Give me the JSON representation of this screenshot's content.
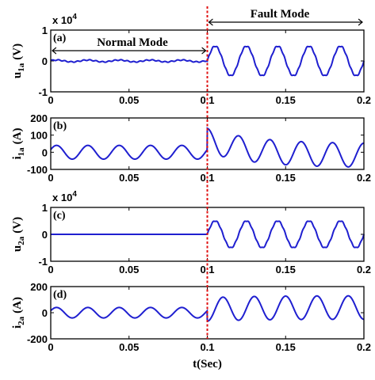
{
  "chart_data": [
    {
      "type": "line",
      "tag": "(a)",
      "ylabel_main": "u",
      "ylabel_sub": "1a",
      "ylabel_unit": "(V)",
      "exponent_base": "x 10",
      "exponent_power": "4",
      "ylim": [
        -1,
        1
      ],
      "yticks": [
        "1",
        "0",
        "-1"
      ],
      "xlim": [
        0,
        0.2
      ],
      "xticks": [
        "0",
        "0.05",
        "0.1",
        "0.15",
        "0.2"
      ],
      "series": [
        {
          "color": "#1f1fd0",
          "pre_amplitude": 0.03,
          "pre_offset": 0,
          "post_amplitude": 0.48,
          "post_offset": 0
        }
      ]
    },
    {
      "type": "line",
      "tag": "(b)",
      "ylabel_main": "i",
      "ylabel_sub": "1a",
      "ylabel_unit": "(A)",
      "ylim": [
        -100,
        200
      ],
      "yticks": [
        "200",
        "100",
        "0",
        "-100"
      ],
      "xlim": [
        0,
        0.2
      ],
      "xticks": [
        "0",
        "0.05",
        "0.1",
        "0.15",
        "0.2"
      ],
      "series": [
        {
          "color": "#1f1fd0",
          "pre_amplitude": 40,
          "pre_offset": 0,
          "post_amplitude": 70,
          "post_offset": 40,
          "jump": 160
        }
      ]
    },
    {
      "type": "line",
      "tag": "(c)",
      "ylabel_main": "u",
      "ylabel_sub": "2a",
      "ylabel_unit": "(V)",
      "exponent_base": "x 10",
      "exponent_power": "4",
      "ylim": [
        -1,
        1
      ],
      "yticks": [
        "1",
        "0",
        "-1"
      ],
      "xlim": [
        0,
        0.2
      ],
      "xticks": [
        "0",
        "0.05",
        "0.1",
        "0.15",
        "0.2"
      ],
      "series": [
        {
          "color": "#1f1fd0",
          "pre_amplitude": 0,
          "pre_offset": 0,
          "post_amplitude": 0.5,
          "post_offset": 0
        }
      ]
    },
    {
      "type": "line",
      "tag": "(d)",
      "ylabel_main": "i",
      "ylabel_sub": "2a",
      "ylabel_unit": "(A)",
      "ylim": [
        -200,
        200
      ],
      "yticks": [
        "200",
        "0",
        "-200"
      ],
      "xlim": [
        0,
        0.2
      ],
      "xticks": [
        "0",
        "0.05",
        "0.1",
        "0.15",
        "0.2"
      ],
      "xlabel": "t(Sec)",
      "series": [
        {
          "color": "#1f1fd0",
          "pre_amplitude": 40,
          "pre_offset": 0,
          "post_amplitude": 90,
          "post_offset": -20
        }
      ]
    }
  ],
  "annotations": {
    "normal_mode": "Normal Mode",
    "fault_mode": "Fault Mode",
    "fault_time": 0.1,
    "fault_line_color": "#e01010",
    "signal_frequency_hz": 50
  }
}
